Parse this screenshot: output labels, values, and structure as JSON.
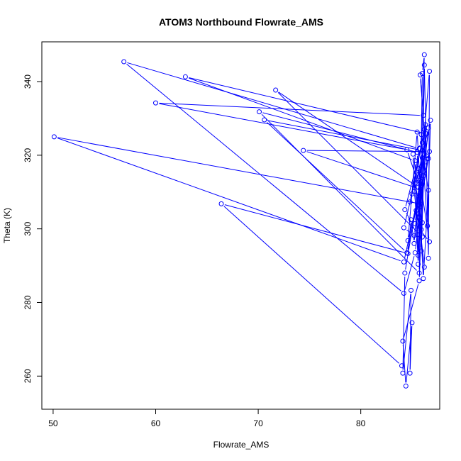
{
  "chart_data": {
    "type": "line",
    "title": "ATOM3 Northbound Flowrate_AMS",
    "xlabel": "Flowrate_AMS",
    "ylabel": "Theta (K)",
    "xlim": [
      48.9,
      87.7
    ],
    "ylim": [
      251.0,
      350.8
    ],
    "xticks": [
      50,
      60,
      70,
      80
    ],
    "yticks": [
      260,
      280,
      300,
      320,
      340
    ],
    "grid": false,
    "legend": "none",
    "series": [
      {
        "color": "#0000ff",
        "marker": "open-circle",
        "points": [
          {
            "x": 84.0,
            "y": 262.8
          },
          {
            "x": 66.4,
            "y": 306.8
          },
          {
            "x": 84.6,
            "y": 293.3
          },
          {
            "x": 84.9,
            "y": 302.5
          },
          {
            "x": 85.2,
            "y": 296.0
          },
          {
            "x": 85.6,
            "y": 309.0
          },
          {
            "x": 84.2,
            "y": 291.0
          },
          {
            "x": 50.1,
            "y": 325.0
          },
          {
            "x": 85.8,
            "y": 306.8
          },
          {
            "x": 85.2,
            "y": 298.2
          },
          {
            "x": 84.2,
            "y": 300.3
          },
          {
            "x": 85.0,
            "y": 309.5
          },
          {
            "x": 86.2,
            "y": 327.0
          },
          {
            "x": 86.3,
            "y": 318.2
          },
          {
            "x": 85.3,
            "y": 293.5
          },
          {
            "x": 84.2,
            "y": 282.5
          },
          {
            "x": 56.9,
            "y": 345.4
          },
          {
            "x": 85.7,
            "y": 321.8
          },
          {
            "x": 86.4,
            "y": 319.8
          },
          {
            "x": 85.8,
            "y": 341.8
          },
          {
            "x": 86.1,
            "y": 330.8
          },
          {
            "x": 60.0,
            "y": 334.2
          },
          {
            "x": 84.5,
            "y": 321.5
          },
          {
            "x": 85.8,
            "y": 310.8
          },
          {
            "x": 74.4,
            "y": 321.3
          },
          {
            "x": 86.7,
            "y": 321.0
          },
          {
            "x": 85.8,
            "y": 306.0
          },
          {
            "x": 86.0,
            "y": 342.2
          },
          {
            "x": 86.2,
            "y": 347.3
          },
          {
            "x": 85.6,
            "y": 292.8
          },
          {
            "x": 85.3,
            "y": 318.5
          },
          {
            "x": 62.9,
            "y": 341.3
          },
          {
            "x": 86.4,
            "y": 325.8
          },
          {
            "x": 85.7,
            "y": 314.2
          },
          {
            "x": 85.9,
            "y": 299.8
          },
          {
            "x": 85.7,
            "y": 303.0
          },
          {
            "x": 85.6,
            "y": 311.3
          },
          {
            "x": 71.7,
            "y": 337.7
          },
          {
            "x": 86.0,
            "y": 297.8
          },
          {
            "x": 85.4,
            "y": 305.0
          },
          {
            "x": 86.8,
            "y": 329.5
          },
          {
            "x": 86.5,
            "y": 300.8
          },
          {
            "x": 85.9,
            "y": 325.6
          },
          {
            "x": 85.7,
            "y": 288.0
          },
          {
            "x": 70.1,
            "y": 331.8
          },
          {
            "x": 85.5,
            "y": 320.8
          },
          {
            "x": 85.8,
            "y": 302.2
          },
          {
            "x": 86.1,
            "y": 286.5
          },
          {
            "x": 86.6,
            "y": 310.5
          },
          {
            "x": 86.0,
            "y": 321.3
          },
          {
            "x": 70.6,
            "y": 329.6
          },
          {
            "x": 84.5,
            "y": 293.5
          },
          {
            "x": 86.1,
            "y": 314.4
          },
          {
            "x": 85.7,
            "y": 285.9
          },
          {
            "x": 84.1,
            "y": 269.5
          },
          {
            "x": 84.4,
            "y": 257.3
          },
          {
            "x": 85.0,
            "y": 274.5
          },
          {
            "x": 84.8,
            "y": 260.8
          },
          {
            "x": 84.9,
            "y": 283.3
          },
          {
            "x": 84.1,
            "y": 260.8
          },
          {
            "x": 84.3,
            "y": 288.0
          },
          {
            "x": 85.8,
            "y": 313.0
          },
          {
            "x": 86.7,
            "y": 342.8
          },
          {
            "x": 86.6,
            "y": 292.0
          },
          {
            "x": 86.2,
            "y": 344.5
          },
          {
            "x": 85.9,
            "y": 294.0
          },
          {
            "x": 86.3,
            "y": 328.3
          },
          {
            "x": 84.8,
            "y": 307.3
          },
          {
            "x": 85.6,
            "y": 316.4
          },
          {
            "x": 86.7,
            "y": 296.5
          },
          {
            "x": 85.3,
            "y": 301.4
          },
          {
            "x": 86.0,
            "y": 319.3
          },
          {
            "x": 85.6,
            "y": 290.4
          },
          {
            "x": 85.1,
            "y": 320.3
          },
          {
            "x": 86.0,
            "y": 323.4
          },
          {
            "x": 84.3,
            "y": 305.2
          },
          {
            "x": 85.5,
            "y": 298.4
          },
          {
            "x": 86.6,
            "y": 327.4
          },
          {
            "x": 85.2,
            "y": 310.1
          },
          {
            "x": 86.2,
            "y": 289.6
          },
          {
            "x": 85.3,
            "y": 312.4
          },
          {
            "x": 86.0,
            "y": 301.7
          },
          {
            "x": 85.5,
            "y": 326.3
          },
          {
            "x": 84.6,
            "y": 296.8
          },
          {
            "x": 86.6,
            "y": 319.1
          }
        ]
      }
    ]
  }
}
